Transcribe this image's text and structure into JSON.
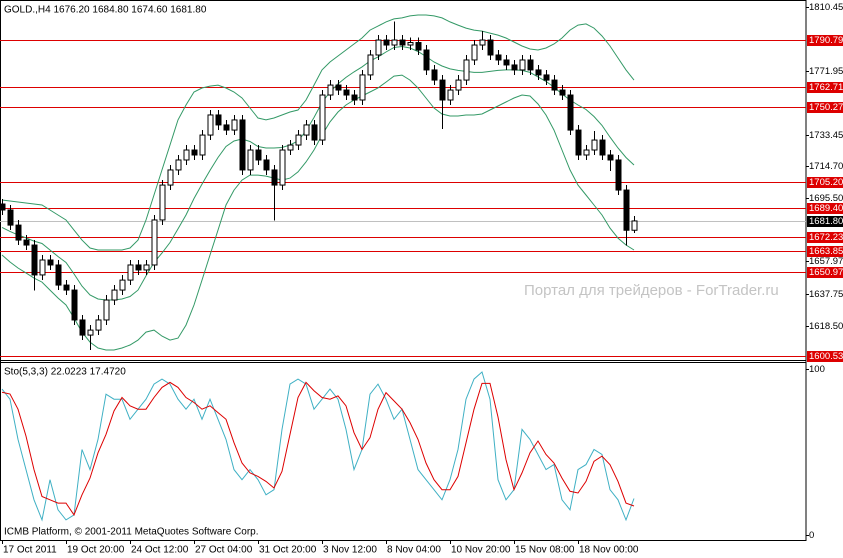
{
  "chart_data": [
    {
      "type": "candlestick",
      "title": "GOLD.,H4  1676.20 1684.80 1674.60 1681.80",
      "watermark": "Портал для трейдеров - ForTrader.ru",
      "categories": [
        "17 Oct 2011",
        null,
        null,
        null,
        null,
        null,
        null,
        null,
        "19 Oct 20:00",
        null,
        null,
        null,
        null,
        null,
        null,
        null,
        "24 Oct 12:00",
        null,
        null,
        null,
        null,
        null,
        null,
        null,
        "27 Oct 04:00",
        null,
        null,
        null,
        null,
        null,
        null,
        null,
        "31 Oct 20:00",
        null,
        null,
        null,
        null,
        null,
        null,
        null,
        "3 Nov 12:00",
        null,
        null,
        null,
        null,
        null,
        null,
        null,
        "8 Nov 04:00",
        null,
        null,
        null,
        null,
        null,
        null,
        null,
        "10 Nov 20:00",
        null,
        null,
        null,
        null,
        null,
        null,
        null,
        "15 Nov 08:00",
        null,
        null,
        null,
        null,
        null,
        null,
        null,
        "18 Nov 00:00",
        null,
        null,
        null,
        null,
        null,
        null,
        null
      ],
      "open": [
        1692.0,
        1688.4,
        1679.3,
        1670.3,
        1667.3,
        1649.3,
        1658.3,
        1655.3,
        1643.2,
        1640.2,
        1622.2,
        1613.1,
        1616.1,
        1622.2,
        1634.2,
        1640.2,
        1646.2,
        1655.3,
        1652.3,
        1655.3,
        1682.4,
        1703.4,
        1712.5,
        1718.5,
        1724.5,
        1721.5,
        1733.5,
        1745.6,
        1739.6,
        1736.5,
        1742.6,
        1712.5,
        1724.5,
        1718.5,
        1712.5,
        1703.4,
        1724.5,
        1727.5,
        1733.5,
        1739.6,
        1730.5,
        1757.6,
        1763.6,
        1760.6,
        1757.6,
        1754.6,
        1769.7,
        1781.7,
        1790.7,
        1787.7,
        1790.7,
        1787.7,
        1789.2,
        1784.7,
        1772.7,
        1766.6,
        1754.6,
        1760.6,
        1766.6,
        1778.7,
        1787.7,
        1790.7,
        1781.7,
        1778.7,
        1775.7,
        1772.7,
        1778.7,
        1772.7,
        1769.7,
        1766.6,
        1760.6,
        1757.6,
        1736.5,
        1721.5,
        1724.5,
        1730.5,
        1721.5,
        1718.5,
        1700.4,
        1676.2
      ],
      "high": [
        1695.0,
        1691.4,
        1682.3,
        1673.3,
        1670.3,
        1661.3,
        1661.3,
        1658.3,
        1646.2,
        1643.2,
        1625.2,
        1619.1,
        1625.2,
        1637.2,
        1643.2,
        1649.2,
        1658.3,
        1658.3,
        1658.3,
        1685.4,
        1706.4,
        1715.5,
        1721.5,
        1727.5,
        1727.5,
        1736.5,
        1748.6,
        1748.6,
        1742.6,
        1745.6,
        1745.6,
        1727.5,
        1727.5,
        1721.5,
        1715.5,
        1727.5,
        1730.5,
        1736.5,
        1742.6,
        1742.6,
        1760.6,
        1766.6,
        1766.6,
        1763.6,
        1760.6,
        1772.7,
        1784.7,
        1793.7,
        1793.7,
        1802.0,
        1793.7,
        1792.2,
        1792.2,
        1787.7,
        1775.7,
        1769.6,
        1763.6,
        1769.6,
        1781.7,
        1790.7,
        1796.0,
        1793.7,
        1784.7,
        1781.7,
        1778.7,
        1781.7,
        1781.7,
        1775.7,
        1772.7,
        1769.6,
        1763.6,
        1760.6,
        1739.5,
        1727.5,
        1736.0,
        1733.5,
        1724.5,
        1721.5,
        1703.4,
        1684.8
      ],
      "low": [
        1685.4,
        1676.3,
        1667.3,
        1664.3,
        1640.0,
        1646.3,
        1652.3,
        1640.2,
        1637.2,
        1619.2,
        1610.1,
        1604.0,
        1613.1,
        1619.2,
        1631.2,
        1637.2,
        1643.2,
        1649.3,
        1649.3,
        1652.3,
        1679.4,
        1700.4,
        1709.5,
        1715.5,
        1718.5,
        1718.5,
        1730.5,
        1736.6,
        1733.5,
        1733.5,
        1709.5,
        1709.5,
        1715.5,
        1709.5,
        1682.0,
        1700.4,
        1721.5,
        1724.5,
        1730.5,
        1727.5,
        1727.5,
        1754.6,
        1757.6,
        1754.6,
        1751.6,
        1751.6,
        1766.7,
        1778.7,
        1784.7,
        1784.7,
        1784.7,
        1784.7,
        1781.7,
        1769.7,
        1763.6,
        1737.0,
        1751.6,
        1757.6,
        1763.6,
        1775.7,
        1784.7,
        1778.7,
        1775.7,
        1772.7,
        1769.7,
        1769.7,
        1769.7,
        1766.7,
        1763.6,
        1757.6,
        1754.6,
        1733.5,
        1718.5,
        1718.5,
        1721.5,
        1718.5,
        1712.0,
        1697.4,
        1667.0,
        1674.6
      ],
      "close": [
        1688.4,
        1679.3,
        1670.3,
        1667.3,
        1649.3,
        1658.3,
        1655.3,
        1643.2,
        1640.2,
        1622.2,
        1613.1,
        1616.1,
        1622.2,
        1634.2,
        1640.2,
        1646.2,
        1655.3,
        1652.3,
        1655.3,
        1682.4,
        1703.4,
        1712.5,
        1718.5,
        1724.5,
        1721.5,
        1733.5,
        1745.6,
        1739.6,
        1736.5,
        1742.6,
        1712.5,
        1724.5,
        1718.5,
        1712.5,
        1703.4,
        1724.5,
        1727.5,
        1733.5,
        1739.6,
        1730.5,
        1757.6,
        1763.6,
        1760.6,
        1757.6,
        1754.6,
        1769.7,
        1781.7,
        1790.7,
        1787.7,
        1790.7,
        1787.7,
        1789.2,
        1784.7,
        1772.7,
        1766.6,
        1754.6,
        1760.6,
        1766.6,
        1778.7,
        1787.7,
        1790.7,
        1781.7,
        1778.7,
        1775.7,
        1772.7,
        1778.7,
        1772.7,
        1769.7,
        1766.6,
        1760.6,
        1757.6,
        1736.5,
        1721.5,
        1724.5,
        1730.5,
        1721.5,
        1718.5,
        1700.4,
        1676.2,
        1681.8
      ],
      "up_color": "#ffffff",
      "down_color": "#000000",
      "color": "#000000",
      "overlays": [
        {
          "color": "#339966",
          "values": [
            1694.4,
            1693.8,
            1693.2,
            1692.6,
            1692.0,
            1691.4,
            1688.4,
            1685.4,
            1682.4,
            1676.3,
            1670.3,
            1665.5,
            1664.3,
            1664.3,
            1664.3,
            1664.3,
            1665.5,
            1670.3,
            1682.4,
            1697.4,
            1712.5,
            1727.5,
            1742.6,
            1751.6,
            1759.4,
            1761.8,
            1763.0,
            1763.6,
            1761.8,
            1759.4,
            1755.8,
            1749.8,
            1743.8,
            1742.6,
            1743.8,
            1745.6,
            1747.4,
            1748.6,
            1754.6,
            1763.6,
            1772.7,
            1777.5,
            1781.1,
            1784.7,
            1788.3,
            1791.9,
            1796.7,
            1799.1,
            1801.6,
            1803.4,
            1804.0,
            1805.2,
            1805.8,
            1805.8,
            1805.2,
            1804.0,
            1801.6,
            1799.7,
            1797.9,
            1796.7,
            1796.1,
            1794.9,
            1793.7,
            1791.9,
            1789.5,
            1787.1,
            1785.3,
            1784.7,
            1785.9,
            1788.3,
            1791.9,
            1796.7,
            1799.7,
            1800.4,
            1797.9,
            1793.1,
            1787.1,
            1779.9,
            1772.7,
            1766.6
          ]
        },
        {
          "color": "#339966",
          "values": [
            1677.9,
            1675.5,
            1673.4,
            1671.6,
            1669.7,
            1668.2,
            1664.3,
            1660.4,
            1656.8,
            1649.9,
            1642.6,
            1637.2,
            1634.8,
            1634.2,
            1634.2,
            1634.8,
            1636.3,
            1640.2,
            1648.7,
            1656.8,
            1662.5,
            1668.8,
            1677.0,
            1685.4,
            1695.3,
            1704.0,
            1712.2,
            1720.0,
            1726.6,
            1729.9,
            1731.1,
            1729.6,
            1726.6,
            1725.7,
            1725.7,
            1726.0,
            1727.5,
            1730.0,
            1736.0,
            1744.1,
            1753.1,
            1759.5,
            1764.3,
            1768.2,
            1771.5,
            1774.5,
            1778.1,
            1780.5,
            1783.5,
            1786.2,
            1786.8,
            1785.9,
            1783.8,
            1780.8,
            1777.5,
            1775.1,
            1773.3,
            1772.4,
            1771.8,
            1771.2,
            1771.2,
            1771.8,
            1772.4,
            1772.7,
            1772.7,
            1772.4,
            1771.2,
            1768.5,
            1765.8,
            1762.4,
            1758.2,
            1754.6,
            1751.6,
            1748.9,
            1744.7,
            1739.3,
            1732.3,
            1725.7,
            1720.0,
            1715.5
          ]
        },
        {
          "color": "#339966",
          "values": [
            1661.3,
            1657.1,
            1653.5,
            1650.5,
            1647.4,
            1645.0,
            1640.2,
            1635.4,
            1631.2,
            1623.4,
            1614.9,
            1608.9,
            1605.3,
            1604.1,
            1604.1,
            1605.3,
            1607.1,
            1610.1,
            1614.9,
            1616.1,
            1612.5,
            1610.1,
            1611.3,
            1619.1,
            1631.2,
            1646.2,
            1661.3,
            1676.3,
            1691.4,
            1700.4,
            1706.4,
            1709.4,
            1709.4,
            1708.8,
            1707.6,
            1706.4,
            1707.6,
            1711.3,
            1717.3,
            1724.5,
            1733.5,
            1741.4,
            1747.4,
            1751.6,
            1754.6,
            1757.0,
            1759.4,
            1761.8,
            1765.4,
            1769.0,
            1769.6,
            1766.6,
            1761.8,
            1755.8,
            1749.8,
            1746.2,
            1745.0,
            1745.0,
            1745.6,
            1745.6,
            1746.2,
            1748.6,
            1751.0,
            1753.4,
            1755.8,
            1757.6,
            1757.0,
            1752.2,
            1745.6,
            1736.5,
            1724.5,
            1712.5,
            1703.4,
            1697.4,
            1691.4,
            1685.4,
            1677.5,
            1671.5,
            1667.3,
            1664.3
          ]
        }
      ],
      "levels": [
        1790.79,
        1762.71,
        1750.27,
        {
          "value": 1705.2,
          "label": "1705.20"
        },
        {
          "value": 1689.4,
          "label": "1689.40"
        },
        1672.23,
        1663.85,
        1650.97,
        1600.53
      ],
      "level_color": "#dd0000",
      "price_line": {
        "value": 1681.8,
        "label": "1681.80"
      },
      "ylim": [
        1598.1,
        1814.8
      ],
      "yticks": [
        1810.45,
        1771.95,
        1733.45,
        {
          "value": 1714.7,
          "label": "1714.70"
        },
        {
          "value": 1695.5,
          "label": "1695.50"
        },
        1657.97,
        1637.75,
        {
          "value": 1618.5,
          "label": "1618.50"
        }
      ],
      "grid": false
    },
    {
      "type": "line",
      "title": "Sto(5,3,3) 22.0223 17.4720",
      "series": [
        {
          "color": "#3fb0c4",
          "values": [
            87.9,
            81.8,
            57.6,
            39.4,
            21.2,
            9.1,
            33.3,
            15.2,
            9.1,
            12.1,
            51.5,
            39.4,
            57.6,
            84.8,
            81.8,
            81.8,
            69.7,
            75.8,
            81.8,
            90.9,
            93.9,
            90.9,
            81.8,
            75.8,
            81.8,
            69.7,
            81.8,
            69.7,
            57.6,
            39.4,
            33.3,
            39.4,
            33.3,
            24.2,
            27.3,
            63.6,
            90.9,
            93.9,
            90.9,
            75.8,
            81.8,
            87.9,
            81.8,
            63.6,
            39.4,
            51.5,
            84.8,
            90.9,
            81.8,
            69.7,
            75.8,
            57.6,
            39.4,
            33.3,
            27.3,
            21.2,
            33.3,
            51.5,
            81.8,
            93.9,
            98.2,
            81.8,
            33.3,
            21.2,
            27.3,
            63.6,
            57.6,
            48.5,
            39.4,
            42.4,
            21.2,
            15.2,
            39.4,
            42.4,
            51.5,
            48.5,
            27.3,
            21.2,
            9.1,
            22.0
          ]
        },
        {
          "color": "#dd0000",
          "values": [
            86.0,
            84.9,
            75.8,
            59.6,
            39.4,
            23.2,
            21.2,
            19.2,
            19.2,
            12.1,
            24.2,
            34.3,
            49.5,
            60.6,
            74.7,
            82.8,
            77.8,
            75.8,
            75.8,
            82.8,
            88.9,
            91.9,
            88.9,
            82.8,
            79.8,
            75.8,
            77.8,
            73.7,
            69.7,
            55.6,
            43.4,
            37.4,
            35.3,
            32.3,
            28.3,
            38.4,
            60.6,
            82.8,
            91.9,
            86.9,
            82.8,
            81.8,
            83.8,
            77.8,
            61.6,
            51.5,
            58.6,
            75.7,
            85.8,
            80.8,
            75.8,
            67.7,
            57.6,
            43.4,
            33.3,
            27.3,
            27.3,
            35.3,
            55.5,
            75.7,
            91.3,
            91.3,
            71.1,
            45.4,
            27.3,
            37.4,
            49.5,
            56.6,
            48.5,
            43.4,
            34.3,
            26.3,
            25.3,
            32.3,
            44.4,
            47.5,
            42.4,
            32.3,
            19.2,
            17.5
          ]
        }
      ],
      "ylim": [
        -3.0,
        104.2
      ],
      "yticks": [
        100,
        0
      ],
      "grid": false
    }
  ],
  "copyright": "ICMB Platform, © 2001-2011 MetaQuotes Software Corp."
}
